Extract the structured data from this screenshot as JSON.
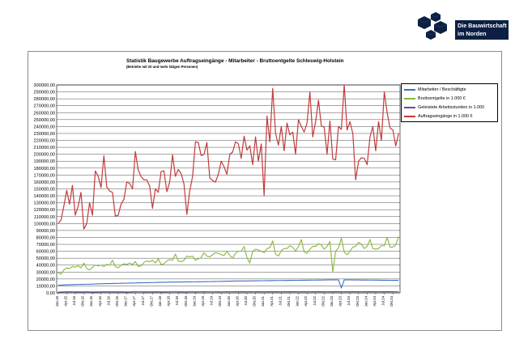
{
  "logo": {
    "line1": "Die Bauwirtschaft",
    "line2": "im Norden"
  },
  "colors": {
    "mitarbeiter": "#3d6fc2",
    "brutto": "#86b83a",
    "stunden": "#6b4aa0",
    "auftrag": "#c23b3b",
    "logo": "#0c1f44"
  },
  "chart_data": {
    "type": "line",
    "title": "Statistik Baugewerbe Auftragseingänge - Mitarbeiter - Bruttoentgelte Schleswig-Holstein",
    "subtitle": "(Betriebe mit 20 und mehr tätigen Personen)",
    "xlabel": "",
    "ylabel": "",
    "ylim": [
      0,
      300000
    ],
    "grid": true,
    "legend": "right",
    "yticks": [
      "0,00",
      "10000,00",
      "20000,00",
      "30000,00",
      "40000,00",
      "50000,00",
      "60000,00",
      "70000,00",
      "80000,00",
      "90000,00",
      "100000,00",
      "110000,00",
      "120000,00",
      "130000,00",
      "140000,00",
      "150000,00",
      "160000,00",
      "170000,00",
      "180000,00",
      "190000,00",
      "200000,00",
      "210000,00",
      "220000,00",
      "230000,00",
      "240000,00",
      "250000,00",
      "260000,00",
      "270000,00",
      "280000,00",
      "290000,00",
      "300000,00"
    ],
    "xtick_labels": [
      "Jan.15",
      "Apr.15",
      "Jul.15",
      "Okt.15",
      "Jan.16",
      "Apr.16",
      "Jul.16",
      "Okt.16",
      "Jan.17",
      "Apr.17",
      "Jul.17",
      "Okt.17",
      "Jan.18",
      "Apr.18",
      "Jul.18",
      "Okt.18",
      "Jan.19",
      "Apr.19",
      "Jul.19",
      "Okt.19",
      "Jan.20",
      "Apr.20",
      "Jul.20",
      "Okt.20",
      "Jan.21",
      "Apr.21",
      "Jul.21",
      "Okt.21",
      "Jan.22",
      "Apr.22",
      "Jul.22",
      "Okt.22",
      "Jan.23",
      "Apr.23",
      "Jul.23",
      "Okt.23",
      "Jan.24",
      "Apr.24",
      "Jul.24",
      "Okt.24"
    ],
    "series": [
      {
        "name": "Mitarbeiter / Beschäftigte",
        "color": "#3d6fc2",
        "values": [
          11000,
          11200,
          11400,
          11600,
          11800,
          11900,
          12000,
          12100,
          12200,
          12300,
          12400,
          12500,
          12600,
          12800,
          13000,
          13100,
          13200,
          13300,
          13400,
          13500,
          13600,
          13700,
          13800,
          13900,
          14000,
          14100,
          14200,
          14300,
          14400,
          14500,
          14600,
          14700,
          14800,
          14900,
          15000,
          15100,
          15200,
          15300,
          15400,
          15500,
          15500,
          15600,
          15600,
          15700,
          15700,
          15800,
          15800,
          15900,
          15900,
          16000,
          16000,
          16100,
          16100,
          16200,
          16300,
          16400,
          16500,
          16600,
          16700,
          16800,
          16900,
          17000,
          17000,
          17100,
          17100,
          17200,
          17200,
          17300,
          17300,
          17400,
          17400,
          17500,
          17500,
          17600,
          17600,
          17700,
          17700,
          17800,
          17800,
          17900,
          17900,
          18000,
          18000,
          18100,
          18100,
          18200,
          18200,
          18300,
          18300,
          18400,
          18400,
          18500,
          18500,
          18600,
          18600,
          18700,
          18700,
          18800,
          18800,
          7000,
          18800,
          18700,
          18700,
          18600,
          18600,
          18600,
          18500,
          18500,
          18500,
          18400,
          18400,
          18300,
          18300,
          18200,
          18200,
          18100,
          18100,
          18000,
          18000,
          18000
        ]
      },
      {
        "name": "Bruttoentgelte in 1.000 €",
        "color": "#86b83a",
        "values": [
          29000,
          27000,
          33000,
          36000,
          35000,
          38000,
          37000,
          39000,
          36000,
          43000,
          35000,
          33000,
          37000,
          40000,
          39000,
          40000,
          38000,
          41000,
          40000,
          47000,
          38000,
          36000,
          40000,
          42000,
          41000,
          43000,
          41000,
          45000,
          38000,
          39000,
          44000,
          46000,
          45000,
          47000,
          43000,
          49000,
          41000,
          42000,
          46000,
          48000,
          47000,
          56000,
          46000,
          45000,
          47000,
          53000,
          52000,
          53000,
          47000,
          49000,
          51000,
          58000,
          53000,
          52000,
          55000,
          58000,
          57000,
          55000,
          54000,
          60000,
          54000,
          50000,
          57000,
          60000,
          60000,
          67000,
          51000,
          43000,
          60000,
          63000,
          62000,
          60000,
          58000,
          64000,
          65000,
          75000,
          56000,
          53000,
          61000,
          64000,
          64000,
          68000,
          66000,
          60000,
          67000,
          77000,
          59000,
          57000,
          63000,
          67000,
          67000,
          71000,
          69000,
          63000,
          67000,
          74000,
          30000,
          60000,
          65000,
          79000,
          59000,
          55000,
          60000,
          66000,
          67000,
          73000,
          70000,
          64000,
          67000,
          77000,
          64000,
          63000,
          64000,
          68000,
          68000,
          80000,
          66000,
          66000,
          69000,
          81000
        ]
      },
      {
        "name": "Geleistete Arbeitsstunden in 1.000",
        "color": "#6b4aa0",
        "values": [
          1100,
          1200,
          1400,
          1500,
          1500,
          1500,
          1400,
          1500,
          1300,
          1500,
          1500,
          1400,
          1200,
          1300,
          1400,
          1500,
          1500,
          1500,
          1500,
          1500,
          1400,
          1500,
          1500,
          1400,
          1300,
          1400,
          1500,
          1600,
          1600,
          1600,
          1500,
          1600,
          1400,
          1500,
          1600,
          1500,
          1400,
          1400,
          1500,
          1600,
          1600,
          1600,
          1500,
          1600,
          1400,
          1500,
          1600,
          1600,
          1500,
          1600,
          1600,
          1700,
          1600,
          1600,
          1600,
          1600,
          1500,
          1600,
          1600,
          1700,
          1600,
          1600,
          1700,
          1700,
          1700,
          1700,
          1600,
          1700,
          1600,
          1700,
          1700,
          1700,
          1600,
          1700,
          1700,
          1800,
          1700,
          1700,
          1600,
          1700,
          1700,
          1800,
          1700,
          1700,
          1600,
          1700,
          1700,
          1700,
          1600,
          1700,
          1700,
          1800,
          1700,
          1700,
          1600,
          1700,
          1700,
          1800,
          1700,
          1700,
          1600,
          1700,
          1700,
          1800,
          1700,
          1700,
          1600,
          1700,
          1700,
          1800,
          1700,
          1700,
          1600,
          1700,
          1700,
          1800,
          1700,
          1700,
          1600,
          1700
        ]
      },
      {
        "name": "Auftragseingänge in 1.000 €",
        "color": "#c23b3b",
        "values": [
          100000,
          105000,
          125000,
          148000,
          128000,
          155000,
          112000,
          125000,
          145000,
          92000,
          100000,
          130000,
          112000,
          176000,
          168000,
          152000,
          198000,
          153000,
          147000,
          145000,
          111000,
          112000,
          128000,
          135000,
          160000,
          158000,
          150000,
          204000,
          177000,
          168000,
          163000,
          163000,
          154000,
          122000,
          150000,
          145000,
          175000,
          176000,
          146000,
          160000,
          199000,
          168000,
          178000,
          172000,
          157000,
          113000,
          147000,
          168000,
          218000,
          217000,
          198000,
          200000,
          217000,
          166000,
          162000,
          160000,
          171000,
          190000,
          182000,
          171000,
          200000,
          203000,
          218000,
          215000,
          194000,
          226000,
          206000,
          212000,
          185000,
          225000,
          190000,
          215000,
          140000,
          255000,
          218000,
          295000,
          230000,
          213000,
          240000,
          205000,
          245000,
          228000,
          232000,
          200000,
          250000,
          240000,
          232000,
          245000,
          290000,
          225000,
          247000,
          278000,
          241000,
          239000,
          200000,
          248000,
          193000,
          192000,
          240000,
          236000,
          300000,
          235000,
          247000,
          230000,
          163000,
          190000,
          195000,
          194000,
          185000,
          225000,
          240000,
          205000,
          247000,
          220000,
          290000,
          260000,
          238000,
          235000,
          212000,
          230000
        ]
      }
    ]
  }
}
